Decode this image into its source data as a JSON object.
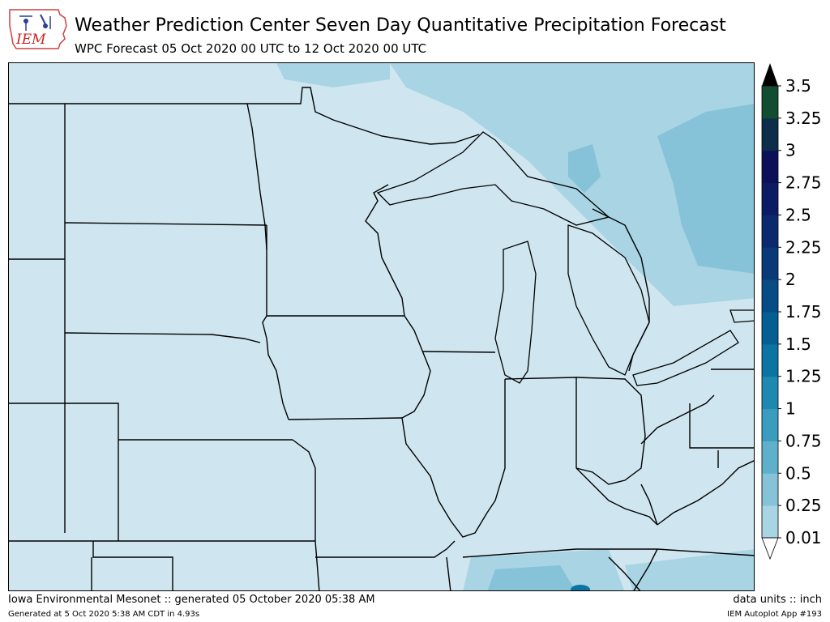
{
  "header": {
    "logo_text": "IEM",
    "title": "Weather Prediction Center Seven Day Quantitative Precipitation Forecast",
    "subtitle": "WPC Forecast 05 Oct 2020 00 UTC to 12 Oct 2020 00 UTC"
  },
  "legend": {
    "levels": [
      "0.01",
      "0.25",
      "0.5",
      "0.75",
      "1",
      "1.25",
      "1.5",
      "1.75",
      "2",
      "2.25",
      "2.5",
      "2.75",
      "3",
      "3.25",
      "3.5"
    ],
    "colors": [
      "#cfe6f0",
      "#a8d4e4",
      "#86c2d8",
      "#5fb0cb",
      "#3a9cbe",
      "#1f88b1",
      "#0c74a2",
      "#065f93",
      "#074c84",
      "#093a78",
      "#0b2a6e",
      "#0c1c64",
      "#0d1058",
      "#0e2d4a",
      "#124c31",
      "#1a6b23"
    ],
    "over_color": "#000000",
    "under_color": "#ffffff"
  },
  "map": {
    "land_color": "#eeeeee",
    "border_color": "#000000"
  },
  "footer": {
    "left": "Iowa Environmental Mesonet :: generated 05 October 2020 05:38 AM",
    "right": "data units :: inch",
    "left_small": "Generated at 5 Oct 2020 5:38 AM CDT in 4.93s",
    "right_small": "IEM Autoplot App #193"
  }
}
